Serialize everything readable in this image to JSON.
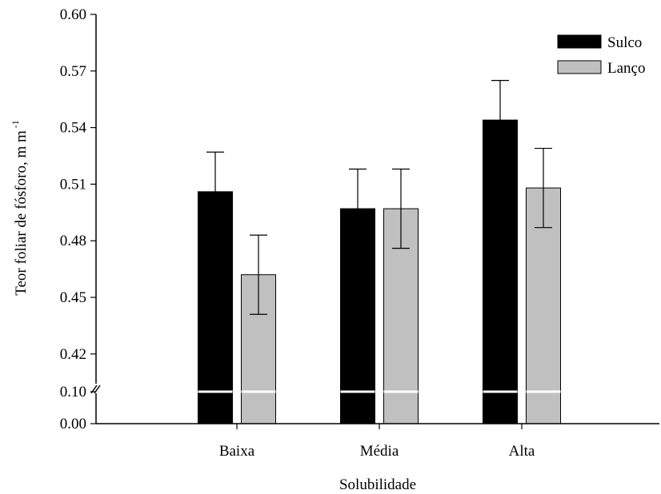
{
  "chart_data": {
    "type": "bar",
    "title": "",
    "xlabel": "Solubilidade",
    "ylabel": "Teor foliar de fósforo, m m",
    "ylabel_superscript": "-1",
    "categories": [
      "Baixa",
      "Média",
      "Alta"
    ],
    "y_ticks_lower": [
      "0.00",
      "0.10"
    ],
    "y_ticks_upper": [
      "0.42",
      "0.45",
      "0.48",
      "0.51",
      "0.54",
      "0.57",
      "0.60"
    ],
    "ylim_lower": [
      0.0,
      0.1
    ],
    "ylim_upper": [
      0.4,
      0.6
    ],
    "axis_break": true,
    "grid": false,
    "legend_position": "top-right",
    "series": [
      {
        "name": "Sulco",
        "color": "#000000",
        "values": [
          0.506,
          0.497,
          0.544
        ],
        "errors": [
          0.021,
          0.021,
          0.021
        ]
      },
      {
        "name": "Lanço",
        "color": "#c0c0c0",
        "values": [
          0.462,
          0.497,
          0.508
        ],
        "errors": [
          0.021,
          0.021,
          0.021
        ]
      }
    ]
  }
}
